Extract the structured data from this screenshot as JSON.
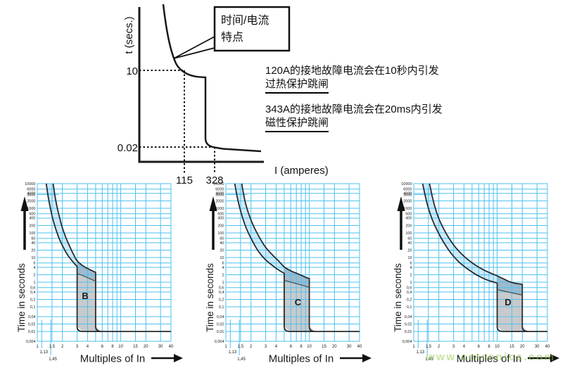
{
  "top_diagram": {
    "y_axis_label": "t (secs.)",
    "x_axis_label": "I (amperes)",
    "y_ticks": [
      "10",
      "0.02"
    ],
    "x_ticks": [
      "115",
      "328"
    ],
    "callout": {
      "line1": "时间/电流",
      "line2": "特点"
    },
    "annotations": [
      {
        "line1": "120A的接地故障电流会在10秒内引发",
        "line2": "过热保护跳闸"
      },
      {
        "line1": "343A的接地故障电流会在20ms内引发",
        "line2": "磁性保护跳闸"
      }
    ]
  },
  "watermark": {
    "text": "www.cntronics.com",
    "color": "#8cc63f"
  },
  "colors": {
    "grid": "#4dc1ef",
    "thermal_band": "#cdeafa",
    "overlap_band": "#9fbacd",
    "magnetic_band": "#c9cacc",
    "curve": "#2b2b2b",
    "divider": "#4a4a4a",
    "text": "#1a1a1a"
  },
  "axes": {
    "x_label": "Multiples of In",
    "y_label": "Time in seconds",
    "x_range": [
      1,
      40
    ],
    "y_range": [
      0.004,
      10000
    ],
    "x_gridlines": [
      1,
      1.5,
      2,
      3,
      4,
      5,
      6,
      7,
      8,
      9,
      10,
      15,
      20,
      30,
      40
    ],
    "x_tick_values": [
      1,
      1.5,
      2,
      3,
      4,
      6,
      8,
      10,
      15,
      20,
      30,
      40
    ],
    "x_tick_labels": [
      "1",
      "1,5",
      "2",
      "3",
      "4",
      "6",
      "8",
      "10",
      "15",
      "20",
      "30",
      "40"
    ],
    "x_special_ticks": [
      {
        "label": "1,13",
        "value": 1.13
      },
      {
        "label": "1,45",
        "value": 1.45
      }
    ],
    "y_gridlines": [
      10000,
      6000,
      4000,
      2000,
      1000,
      600,
      400,
      200,
      100,
      60,
      40,
      20,
      10,
      6,
      4,
      2,
      1,
      0.6,
      0.4,
      0.2,
      0.1,
      0.04,
      0.02,
      0.01,
      0.004
    ],
    "y_tick_values": [
      10000,
      6000,
      4000,
      3600,
      2000,
      1000,
      600,
      400,
      200,
      100,
      60,
      40,
      20,
      10,
      6,
      4,
      2,
      1,
      0.6,
      0.4,
      0.2,
      0.1,
      0.04,
      0.02,
      0.01,
      0.004
    ],
    "y_tick_labels": [
      "10000",
      "6000",
      "4000",
      "3600",
      "2000",
      "1000",
      "600",
      "400",
      "200",
      "100",
      "60",
      "40",
      "20",
      "10",
      "6",
      "4",
      "2",
      "1",
      "0,6",
      "0,4",
      "0,2",
      "0,1",
      "0,04",
      "0,02",
      "0,01",
      "0,004"
    ],
    "y_marker_3600": {
      "value": 3600,
      "x_end": 1.8
    }
  },
  "chart_data": [
    {
      "type": "line",
      "id": "time-current-characteristic",
      "title": "时间/电流特点",
      "xlabel": "I (amperes)",
      "ylabel": "t (secs.)",
      "trip_points": [
        {
          "current": 115,
          "time": 10
        },
        {
          "current": 328,
          "time": 0.02
        }
      ]
    },
    {
      "type": "line",
      "id": "curve-B",
      "label": "B",
      "xlabel": "Multiples of In",
      "ylabel": "Time in seconds",
      "x_range": [
        1,
        40
      ],
      "y_range": [
        0.004,
        10000
      ],
      "magnetic_trip_range": [
        3,
        5
      ],
      "min_curve": [
        [
          1.28,
          10000
        ],
        [
          1.34,
          3500
        ],
        [
          1.42,
          1200
        ],
        [
          1.52,
          420
        ],
        [
          1.65,
          160
        ],
        [
          1.82,
          62
        ],
        [
          2.05,
          26
        ],
        [
          2.3,
          13
        ],
        [
          2.6,
          7.5
        ],
        [
          3,
          4.3
        ]
      ],
      "max_curve": [
        [
          1.55,
          10000
        ],
        [
          1.62,
          3500
        ],
        [
          1.72,
          1200
        ],
        [
          1.85,
          420
        ],
        [
          2.0,
          160
        ],
        [
          2.2,
          65
        ],
        [
          2.45,
          28
        ],
        [
          2.7,
          14
        ],
        [
          3,
          7.4
        ],
        [
          3.6,
          4.4
        ],
        [
          4.3,
          3.2
        ],
        [
          5,
          2.5
        ]
      ],
      "divider": [
        [
          3,
          2.3
        ],
        [
          5,
          1.1
        ]
      ],
      "label_pos": [
        3.75,
        0.21
      ]
    },
    {
      "type": "line",
      "id": "curve-C",
      "label": "C",
      "xlabel": "Multiples of In",
      "ylabel": "Time in seconds",
      "x_range": [
        1,
        40
      ],
      "y_range": [
        0.004,
        10000
      ],
      "magnetic_trip_range": [
        5,
        10
      ],
      "min_curve": [
        [
          1.28,
          10000
        ],
        [
          1.36,
          3200
        ],
        [
          1.46,
          1100
        ],
        [
          1.6,
          380
        ],
        [
          1.78,
          140
        ],
        [
          2.05,
          52
        ],
        [
          2.4,
          20
        ],
        [
          2.9,
          9
        ],
        [
          3.6,
          4.8
        ],
        [
          4.3,
          3.1
        ],
        [
          5,
          2.3
        ]
      ],
      "max_curve": [
        [
          1.55,
          10000
        ],
        [
          1.64,
          3400
        ],
        [
          1.76,
          1200
        ],
        [
          1.95,
          420
        ],
        [
          2.2,
          160
        ],
        [
          2.55,
          62
        ],
        [
          3.0,
          26
        ],
        [
          3.6,
          13
        ],
        [
          4.3,
          7.2
        ],
        [
          5,
          4.2
        ],
        [
          6,
          2.9
        ],
        [
          7.5,
          2.1
        ],
        [
          9,
          1.6
        ],
        [
          10,
          1.4
        ]
      ],
      "divider": [
        [
          5,
          1.2
        ],
        [
          10,
          0.62
        ]
      ],
      "label_pos": [
        7.3,
        0.115
      ]
    },
    {
      "type": "line",
      "id": "curve-D",
      "label": "D",
      "xlabel": "Multiples of In",
      "ylabel": "Time in seconds",
      "x_range": [
        1,
        40
      ],
      "y_range": [
        0.004,
        10000
      ],
      "magnetic_trip_range": [
        10,
        20
      ],
      "min_curve": [
        [
          1.28,
          10000
        ],
        [
          1.38,
          3000
        ],
        [
          1.5,
          1000
        ],
        [
          1.68,
          330
        ],
        [
          1.95,
          110
        ],
        [
          2.3,
          40
        ],
        [
          2.8,
          15
        ],
        [
          3.5,
          6.5
        ],
        [
          4.5,
          3.3
        ],
        [
          5.8,
          1.9
        ],
        [
          7.5,
          1.25
        ],
        [
          10,
          0.92
        ]
      ],
      "max_curve": [
        [
          1.55,
          10000
        ],
        [
          1.66,
          3200
        ],
        [
          1.8,
          1100
        ],
        [
          2.0,
          380
        ],
        [
          2.3,
          140
        ],
        [
          2.7,
          55
        ],
        [
          3.3,
          22
        ],
        [
          4.1,
          10.5
        ],
        [
          5.2,
          5.6
        ],
        [
          6.6,
          3.4
        ],
        [
          8.2,
          2.4
        ],
        [
          10,
          1.8
        ],
        [
          12,
          1.35
        ],
        [
          14,
          1.05
        ],
        [
          16.5,
          0.9
        ],
        [
          20,
          0.82
        ]
      ],
      "divider": [
        [
          10,
          0.5
        ],
        [
          20,
          0.3
        ]
      ],
      "label_pos": [
        13.5,
        0.115
      ]
    }
  ]
}
